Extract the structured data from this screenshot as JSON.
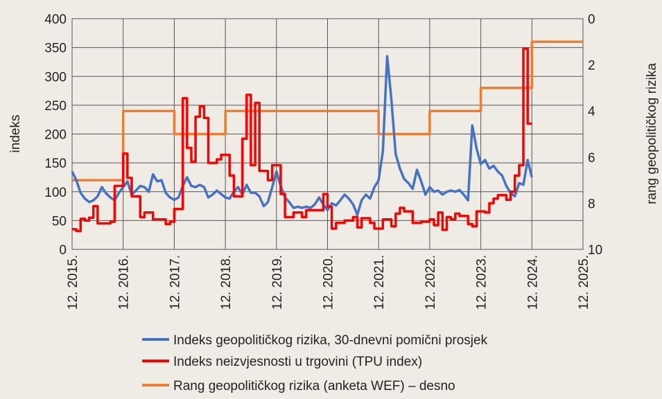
{
  "chart_data": {
    "type": "line",
    "title": "",
    "ylabel": "indeks",
    "ylabel_right": "rang geopolitičkog rizika",
    "ylim": [
      0,
      400
    ],
    "yticks": [
      0,
      50,
      100,
      150,
      200,
      250,
      300,
      350,
      400
    ],
    "ylim_right": [
      10,
      0
    ],
    "yticks_right": [
      0,
      2,
      4,
      6,
      8,
      10
    ],
    "right_axis_inverted": true,
    "xlim": [
      "2015-12",
      "2025-12"
    ],
    "xtick_labels": [
      "12. 2015.",
      "12. 2016.",
      "12. 2017.",
      "12. 2018.",
      "12. 2019.",
      "12. 2020.",
      "12. 2021.",
      "12. 2022.",
      "12. 2023.",
      "12. 2024.",
      "12. 2025."
    ],
    "grid": true,
    "legend_placement": "bottom",
    "series": [
      {
        "name": "Indeks geopolitičkog rizika, 30-dnevni pomični prosjek",
        "axis": "left",
        "color": "#4472c4",
        "style": "line",
        "start": "2015-12",
        "monthly_values": [
          135,
          120,
          98,
          88,
          82,
          85,
          92,
          108,
          97,
          90,
          85,
          98,
          108,
          118,
          95,
          102,
          110,
          108,
          100,
          130,
          118,
          120,
          98,
          90,
          86,
          90,
          110,
          125,
          110,
          108,
          112,
          108,
          90,
          95,
          102,
          96,
          90,
          88,
          100,
          108,
          95,
          112,
          98,
          98,
          92,
          75,
          82,
          108,
          135,
          110,
          90,
          82,
          72,
          74,
          72,
          74,
          72,
          78,
          90,
          78,
          68,
          80,
          76,
          85,
          95,
          88,
          78,
          60,
          85,
          95,
          88,
          108,
          120,
          170,
          335,
          260,
          165,
          140,
          122,
          115,
          105,
          138,
          118,
          95,
          108,
          100,
          102,
          95,
          100,
          102,
          100,
          103,
          95,
          85,
          215,
          175,
          148,
          155,
          140,
          145,
          135,
          128,
          110,
          98,
          92,
          115,
          112,
          155,
          125
        ]
      },
      {
        "name": "Indeks neizvjesnosti u trgovini (TPU index)",
        "axis": "left",
        "color": "#ff0000",
        "style": "step",
        "end": "2024-12",
        "steps": [
          [
            "2015-12",
            35
          ],
          [
            "2016-01",
            32
          ],
          [
            "2016-02",
            53
          ],
          [
            "2016-03",
            50
          ],
          [
            "2016-04",
            55
          ],
          [
            "2016-05",
            75
          ],
          [
            "2016-06",
            45
          ],
          [
            "2016-09",
            48
          ],
          [
            "2016-10",
            110
          ],
          [
            "2016-12",
            166
          ],
          [
            "2017-01",
            124
          ],
          [
            "2017-02",
            92
          ],
          [
            "2017-04",
            56
          ],
          [
            "2017-05",
            64
          ],
          [
            "2017-07",
            52
          ],
          [
            "2017-10",
            44
          ],
          [
            "2017-11",
            48
          ],
          [
            "2017-12",
            70
          ],
          [
            "2018-02",
            262
          ],
          [
            "2018-03",
            176
          ],
          [
            "2018-04",
            152
          ],
          [
            "2018-05",
            230
          ],
          [
            "2018-06",
            248
          ],
          [
            "2018-07",
            228
          ],
          [
            "2018-08",
            150
          ],
          [
            "2018-10",
            156
          ],
          [
            "2018-11",
            164
          ],
          [
            "2019-01",
            128
          ],
          [
            "2019-02",
            92
          ],
          [
            "2019-04",
            192
          ],
          [
            "2019-05",
            268
          ],
          [
            "2019-06",
            146
          ],
          [
            "2019-07",
            254
          ],
          [
            "2019-08",
            136
          ],
          [
            "2019-10",
            120
          ],
          [
            "2019-11",
            146
          ],
          [
            "2020-01",
            96
          ],
          [
            "2020-02",
            56
          ],
          [
            "2020-04",
            64
          ],
          [
            "2020-06",
            56
          ],
          [
            "2020-07",
            68
          ],
          [
            "2020-11",
            96
          ],
          [
            "2020-12",
            74
          ],
          [
            "2021-01",
            36
          ],
          [
            "2021-02",
            46
          ],
          [
            "2021-04",
            50
          ],
          [
            "2021-06",
            56
          ],
          [
            "2021-07",
            38
          ],
          [
            "2021-08",
            54
          ],
          [
            "2021-10",
            46
          ],
          [
            "2021-11",
            36
          ],
          [
            "2022-01",
            52
          ],
          [
            "2022-03",
            40
          ],
          [
            "2022-04",
            62
          ],
          [
            "2022-05",
            72
          ],
          [
            "2022-06",
            66
          ],
          [
            "2022-08",
            46
          ],
          [
            "2022-10",
            48
          ],
          [
            "2022-12",
            52
          ],
          [
            "2023-01",
            42
          ],
          [
            "2023-02",
            64
          ],
          [
            "2023-03",
            34
          ],
          [
            "2023-04",
            56
          ],
          [
            "2023-05",
            52
          ],
          [
            "2023-06",
            62
          ],
          [
            "2023-07",
            58
          ],
          [
            "2023-09",
            44
          ],
          [
            "2023-10",
            40
          ],
          [
            "2023-11",
            66
          ],
          [
            "2024-01",
            64
          ],
          [
            "2024-02",
            80
          ],
          [
            "2024-03",
            88
          ],
          [
            "2024-04",
            94
          ],
          [
            "2024-06",
            86
          ],
          [
            "2024-07",
            100
          ],
          [
            "2024-08",
            128
          ],
          [
            "2024-09",
            146
          ],
          [
            "2024-10",
            348
          ],
          [
            "2024-11",
            218
          ]
        ]
      },
      {
        "name": "Rang geopolitičkog rizika (anketa WEF) – desno",
        "axis": "right",
        "color": "#ed7d31",
        "style": "step",
        "end": "2025-12",
        "steps": [
          [
            "2015-12",
            7
          ],
          [
            "2016-12",
            4
          ],
          [
            "2017-12",
            5
          ],
          [
            "2018-12",
            4
          ],
          [
            "2021-12",
            5
          ],
          [
            "2022-12",
            4
          ],
          [
            "2023-12",
            3
          ],
          [
            "2024-12",
            1
          ]
        ]
      }
    ]
  }
}
